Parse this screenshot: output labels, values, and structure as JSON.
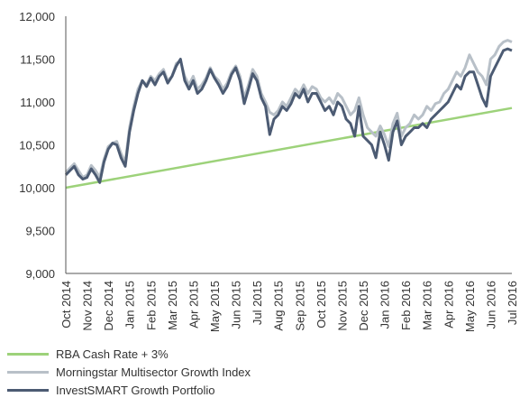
{
  "colors": {
    "rba": "#9dd27a",
    "morningstar": "#b8c0c8",
    "investsmart": "#4c5b73",
    "axis": "#555555"
  },
  "chart_data": {
    "type": "line",
    "title": "",
    "xlabel": "",
    "ylabel": "",
    "ylim": [
      9000,
      12000
    ],
    "yticks": [
      "9,000",
      "9,500",
      "10,000",
      "10,500",
      "11,000",
      "11,500",
      "12,000"
    ],
    "ytick_values": [
      9000,
      9500,
      10000,
      10500,
      11000,
      11500,
      12000
    ],
    "xlim": [
      0,
      21
    ],
    "categories": [
      "Oct 2014",
      "Nov 2014",
      "Dec 2014",
      "Jan 2015",
      "Feb 2015",
      "Mar 2015",
      "Apr 2015",
      "May 2015",
      "Jun 2015",
      "Jul 2015",
      "Aug 2015",
      "Sep 2015",
      "Oct 2015",
      "Nov 2015",
      "Dec 2015",
      "Jan 2016",
      "Feb 2016",
      "Mar 2016",
      "Apr 2016",
      "May 2016",
      "Jun 2016",
      "Jul 2016"
    ],
    "grid": false,
    "legend_position": "bottom-left",
    "series": [
      {
        "name": "RBA Cash Rate + 3%",
        "color_key": "rba",
        "x": [
          0,
          21
        ],
        "y": [
          10000,
          10930
        ]
      },
      {
        "name": "Morningstar Multisector Growth Index",
        "color_key": "morningstar",
        "x": [
          0,
          0.2,
          0.4,
          0.6,
          0.8,
          1.0,
          1.2,
          1.4,
          1.6,
          1.8,
          2.0,
          2.2,
          2.4,
          2.6,
          2.8,
          3.0,
          3.2,
          3.4,
          3.6,
          3.8,
          4.0,
          4.2,
          4.4,
          4.6,
          4.8,
          5.0,
          5.2,
          5.4,
          5.6,
          5.8,
          6.0,
          6.2,
          6.4,
          6.6,
          6.8,
          7.0,
          7.2,
          7.4,
          7.6,
          7.8,
          8.0,
          8.2,
          8.4,
          8.6,
          8.8,
          9.0,
          9.2,
          9.4,
          9.6,
          9.8,
          10.0,
          10.2,
          10.4,
          10.6,
          10.8,
          11.0,
          11.2,
          11.4,
          11.6,
          11.8,
          12.0,
          12.2,
          12.4,
          12.6,
          12.8,
          13.0,
          13.2,
          13.4,
          13.6,
          13.8,
          14.0,
          14.2,
          14.4,
          14.6,
          14.8,
          15.0,
          15.2,
          15.4,
          15.6,
          15.8,
          16.0,
          16.2,
          16.4,
          16.6,
          16.8,
          17.0,
          17.2,
          17.4,
          17.6,
          17.8,
          18.0,
          18.2,
          18.4,
          18.6,
          18.8,
          19.0,
          19.2,
          19.4,
          19.6,
          19.8,
          20.0,
          20.2,
          20.4,
          20.6,
          20.8,
          21.0
        ],
        "y": [
          10180,
          10230,
          10280,
          10200,
          10120,
          10150,
          10260,
          10200,
          10120,
          10330,
          10480,
          10520,
          10540,
          10400,
          10300,
          10700,
          10950,
          11150,
          11250,
          11200,
          11300,
          11250,
          11330,
          11380,
          11250,
          11300,
          11450,
          11480,
          11300,
          11200,
          11300,
          11150,
          11200,
          11280,
          11400,
          11300,
          11250,
          11150,
          11220,
          11350,
          11420,
          11300,
          11050,
          11200,
          11380,
          11300,
          11100,
          11000,
          10880,
          10850,
          10900,
          11000,
          10950,
          11050,
          11150,
          11100,
          11200,
          11100,
          11180,
          11150,
          11050,
          11000,
          11050,
          10980,
          11100,
          11050,
          10950,
          10850,
          10900,
          11050,
          10850,
          10700,
          10650,
          10600,
          10720,
          10620,
          10480,
          10750,
          10870,
          10600,
          10700,
          10750,
          10850,
          10800,
          10850,
          10950,
          10900,
          10980,
          11000,
          11100,
          11150,
          11250,
          11350,
          11300,
          11400,
          11550,
          11450,
          11350,
          11300,
          11200,
          11500,
          11550,
          11650,
          11700,
          11720,
          11700
        ]
      },
      {
        "name": "InvestSMART Growth Portfolio",
        "color_key": "investsmart",
        "x": [
          0,
          0.2,
          0.4,
          0.6,
          0.8,
          1.0,
          1.2,
          1.4,
          1.6,
          1.8,
          2.0,
          2.2,
          2.4,
          2.6,
          2.8,
          3.0,
          3.2,
          3.4,
          3.6,
          3.8,
          4.0,
          4.2,
          4.4,
          4.6,
          4.8,
          5.0,
          5.2,
          5.4,
          5.6,
          5.8,
          6.0,
          6.2,
          6.4,
          6.6,
          6.8,
          7.0,
          7.2,
          7.4,
          7.6,
          7.8,
          8.0,
          8.2,
          8.4,
          8.6,
          8.8,
          9.0,
          9.2,
          9.4,
          9.6,
          9.8,
          10.0,
          10.2,
          10.4,
          10.6,
          10.8,
          11.0,
          11.2,
          11.4,
          11.6,
          11.8,
          12.0,
          12.2,
          12.4,
          12.6,
          12.8,
          13.0,
          13.2,
          13.4,
          13.6,
          13.8,
          14.0,
          14.2,
          14.4,
          14.6,
          14.8,
          15.0,
          15.2,
          15.4,
          15.6,
          15.8,
          16.0,
          16.2,
          16.4,
          16.6,
          16.8,
          17.0,
          17.2,
          17.4,
          17.6,
          17.8,
          18.0,
          18.2,
          18.4,
          18.6,
          18.8,
          19.0,
          19.2,
          19.4,
          19.6,
          19.8,
          20.0,
          20.2,
          20.4,
          20.6,
          20.8,
          21.0
        ],
        "y": [
          10150,
          10200,
          10250,
          10150,
          10100,
          10120,
          10220,
          10150,
          10060,
          10300,
          10450,
          10520,
          10500,
          10350,
          10250,
          10650,
          10900,
          11100,
          11250,
          11180,
          11280,
          11200,
          11300,
          11350,
          11220,
          11300,
          11420,
          11500,
          11250,
          11150,
          11250,
          11100,
          11150,
          11250,
          11380,
          11280,
          11200,
          11100,
          11180,
          11320,
          11400,
          11250,
          10980,
          11150,
          11330,
          11250,
          11050,
          10950,
          10620,
          10800,
          10850,
          10950,
          10900,
          10980,
          11100,
          11050,
          11150,
          11000,
          11100,
          11100,
          11000,
          10900,
          10950,
          10850,
          11000,
          10950,
          10800,
          10750,
          10600,
          10950,
          10600,
          10550,
          10500,
          10350,
          10650,
          10500,
          10320,
          10650,
          10780,
          10500,
          10600,
          10650,
          10700,
          10700,
          10750,
          10700,
          10800,
          10850,
          10900,
          10950,
          11000,
          11100,
          11200,
          11150,
          11300,
          11350,
          11350,
          11200,
          11050,
          10950,
          11300,
          11400,
          11500,
          11600,
          11620,
          11600
        ]
      }
    ]
  }
}
